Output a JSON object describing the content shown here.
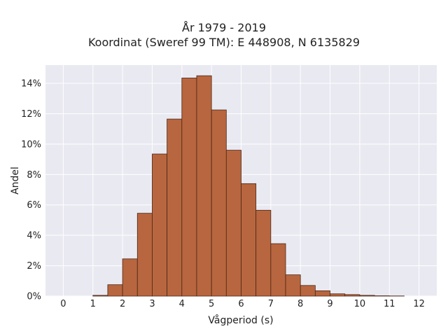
{
  "chart_data": {
    "type": "bar",
    "title_lines": [
      "År 1979 - 2019",
      "Koordinat (Sweref 99 TM): E 448908, N 6135829"
    ],
    "xlabel": "Vågperiod (s)",
    "ylabel": "Andel",
    "xlim": [
      -0.6,
      12.6
    ],
    "ylim": [
      0,
      15.2
    ],
    "x_ticks": [
      0,
      1,
      2,
      3,
      4,
      5,
      6,
      7,
      8,
      9,
      10,
      11,
      12
    ],
    "y_ticks": [
      0,
      2,
      4,
      6,
      8,
      10,
      12,
      14
    ],
    "y_tick_format": "%",
    "grid": true,
    "bin_width": 0.5,
    "bars": [
      {
        "x0": 1.0,
        "value": 0.05
      },
      {
        "x0": 1.5,
        "value": 0.75
      },
      {
        "x0": 2.0,
        "value": 2.45
      },
      {
        "x0": 2.5,
        "value": 5.45
      },
      {
        "x0": 3.0,
        "value": 9.35
      },
      {
        "x0": 3.5,
        "value": 11.65
      },
      {
        "x0": 4.0,
        "value": 14.35
      },
      {
        "x0": 4.5,
        "value": 14.5
      },
      {
        "x0": 5.0,
        "value": 12.25
      },
      {
        "x0": 5.5,
        "value": 9.6
      },
      {
        "x0": 6.0,
        "value": 7.4
      },
      {
        "x0": 6.5,
        "value": 5.65
      },
      {
        "x0": 7.0,
        "value": 3.45
      },
      {
        "x0": 7.5,
        "value": 1.4
      },
      {
        "x0": 8.0,
        "value": 0.7
      },
      {
        "x0": 8.5,
        "value": 0.35
      },
      {
        "x0": 9.0,
        "value": 0.15
      },
      {
        "x0": 9.5,
        "value": 0.1
      },
      {
        "x0": 10.0,
        "value": 0.05
      },
      {
        "x0": 10.5,
        "value": 0.02
      },
      {
        "x0": 11.0,
        "value": 0.01
      }
    ],
    "colors": {
      "bar_fill": "#b8663f",
      "bar_edge": "#4a2614",
      "plot_background": "#e9e9f2",
      "grid": "#ffffff"
    }
  }
}
